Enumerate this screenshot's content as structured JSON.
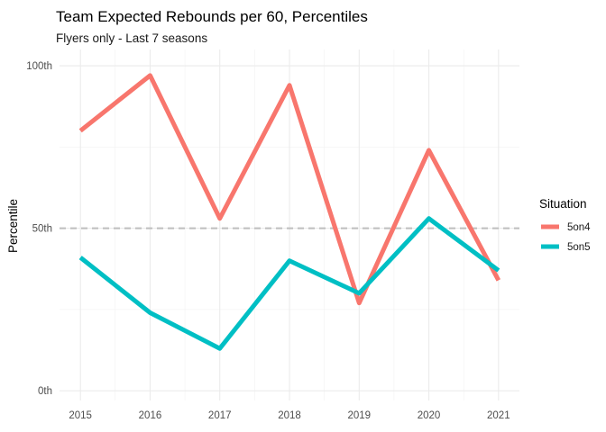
{
  "chart_data": {
    "type": "line",
    "title": "Team Expected Rebounds per 60, Percentiles",
    "subtitle": "Flyers only - Last 7 seasons",
    "xlabel": "",
    "ylabel": "Percentile",
    "x": [
      2015,
      2016,
      2017,
      2018,
      2019,
      2020,
      2021
    ],
    "ylim": [
      -3,
      105
    ],
    "xlim": [
      2014.7,
      2021.3
    ],
    "y_ticks": [
      0,
      50,
      100
    ],
    "y_tick_labels": [
      "0th",
      "50th",
      "100th"
    ],
    "x_tick_labels": [
      "2015",
      "2016",
      "2017",
      "2018",
      "2019",
      "2020",
      "2021"
    ],
    "reference_line": {
      "y": 50,
      "style": "dashed",
      "color": "#bebebe"
    },
    "grid": true,
    "legend": {
      "title": "Situation",
      "position": "right"
    },
    "series": [
      {
        "name": "5on4",
        "color": "#F8766D",
        "values": [
          80,
          97,
          53,
          94,
          27,
          74,
          34
        ]
      },
      {
        "name": "5on5",
        "color": "#00BFC4",
        "values": [
          41,
          24,
          13,
          40,
          30,
          53,
          37
        ]
      }
    ]
  }
}
